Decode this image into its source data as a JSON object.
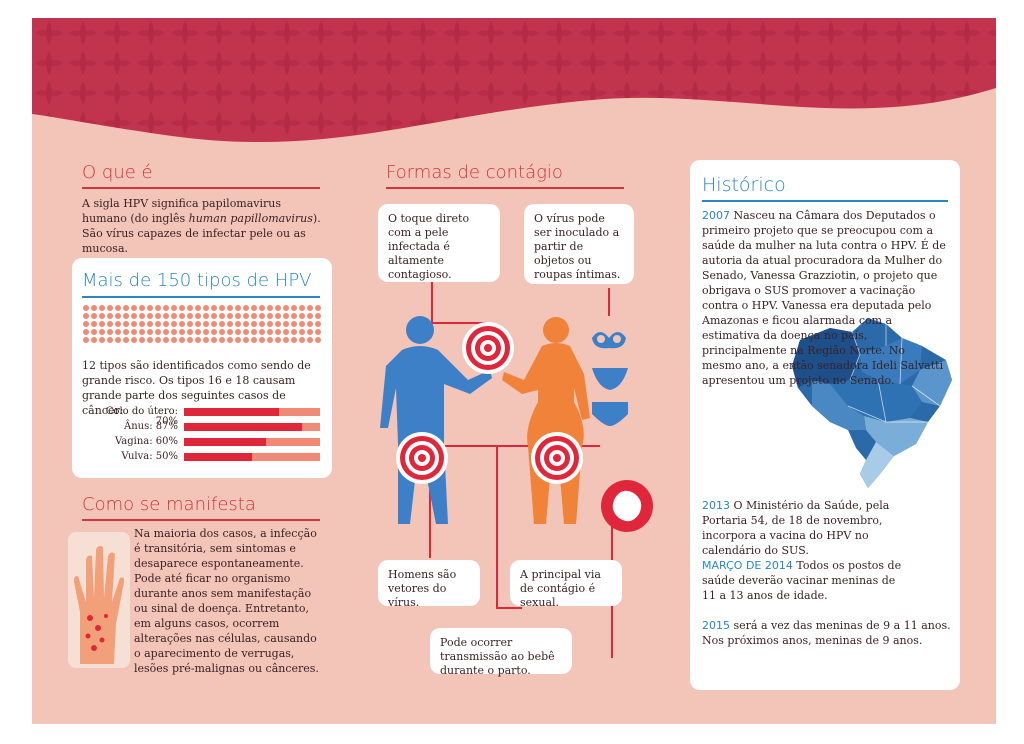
{
  "o_que_e": {
    "title": "O que é",
    "text_before": "A sigla HPV significa papilomavirus humano (do inglês ",
    "text_italic": "human papillomavirus",
    "text_after": "). São vírus capazes de infectar pele ou as mucosa."
  },
  "tipos": {
    "title": "Mais de 150 tipos de HPV",
    "text": "12 tipos são identificados como sendo de grande risco. Os tipos 16 e 18 causam grande parte dos seguintes casos de câncer:",
    "bars": [
      {
        "label": "Colo do útero: 70%",
        "value": 70
      },
      {
        "label": "Ânus: 87%",
        "value": 87
      },
      {
        "label": "Vagina: 60%",
        "value": 60
      },
      {
        "label": "Vulva: 50%",
        "value": 50
      }
    ],
    "dot_grid": {
      "total": 150,
      "highlighted": 12,
      "color": "#f08a76",
      "highlight_color": "#e0263a"
    }
  },
  "como_se_manifesta": {
    "title": "Como se manifesta",
    "text": "Na maioria dos casos, a infecção é transitória, sem sintomas e desaparece espontaneamente. Pode até ficar no organismo durante anos sem manifestação ou sinal de doença. Entretanto, em alguns casos, ocorrem alterações nas células, causando o aparecimento de verrugas, lesões pré-malignas ou cânceres."
  },
  "formas_de_contagio": {
    "title": "Formas de contágio",
    "bubbles": {
      "toque": "O toque direto com a pele infectada é altamente contagioso.",
      "objetos": "O vírus pode ser inoculado a partir de objetos ou roupas íntimas.",
      "homens": "Homens são vetores do vírus.",
      "sexual": "A principal via de contágio é sexual.",
      "parto": "Pode ocorrer transmissão ao bebê durante o parto."
    }
  },
  "historico": {
    "title": "Histórico",
    "y2007": "2007",
    "t2007": " Nasceu na Câmara dos Deputados o primeiro projeto que se preocupou com a saúde da mulher na luta contra o HPV. É de autoria da atual procuradora da Mulher do Senado, Vanessa Grazziotin, o projeto que obrigava o SUS promover a vacinação contra o HPV. Vanessa era deputada pelo Amazonas e ficou alarmada com a estimativa da doença no país, principalmente na Região Norte. No mesmo ano, a então senadora Ideli Salvatti apresentou um projeto no Senado.",
    "y2013": "2013",
    "t2013": " O Ministério da Saúde, pela Portaria 54, de 18 de novembro, incorpora a vacina do HPV no calendário do SUS.",
    "y2014": "MARÇO DE 2014",
    "t2014": " Todos os postos de saúde deverão vacinar meninas de 11 a 13 anos de idade.",
    "y2015": "2015",
    "t2015": " será a vez das meninas de 9 a 11 anos. Nos próximos anos, meninas de 9 anos."
  },
  "colors": {
    "background": "#f3c4b8",
    "header_wave": "#c2344d",
    "accent_red": "#e0263a",
    "accent_blue": "#2a86c3",
    "male_figure": "#3d80c8",
    "female_figure": "#f0823a"
  }
}
